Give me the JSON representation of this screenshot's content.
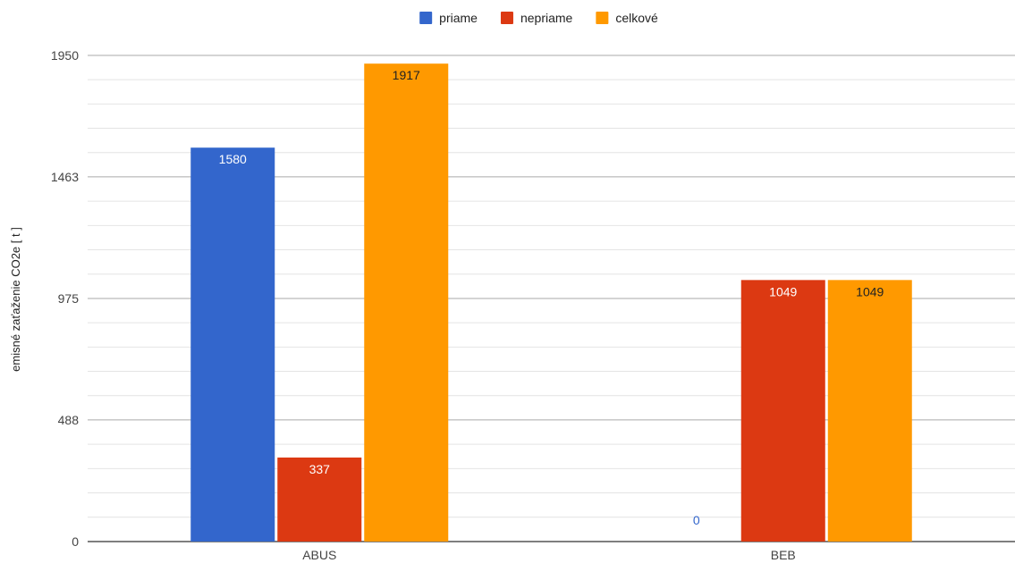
{
  "chart_data": {
    "type": "bar",
    "categories": [
      "ABUS",
      "BEB"
    ],
    "series": [
      {
        "name": "priame",
        "values": [
          1580,
          0
        ],
        "color": "#3366cc"
      },
      {
        "name": "nepriame",
        "values": [
          337,
          1049
        ],
        "color": "#dc3912"
      },
      {
        "name": "celkové",
        "values": [
          1917,
          1049
        ],
        "color": "#ff9900"
      }
    ],
    "ylabel": "emisné zaťaženie CO2e [ t ]",
    "ylim": [
      0,
      1950
    ],
    "yticks": [
      0,
      488,
      975,
      1463,
      1950
    ],
    "grid": true,
    "legend": "top-center"
  }
}
